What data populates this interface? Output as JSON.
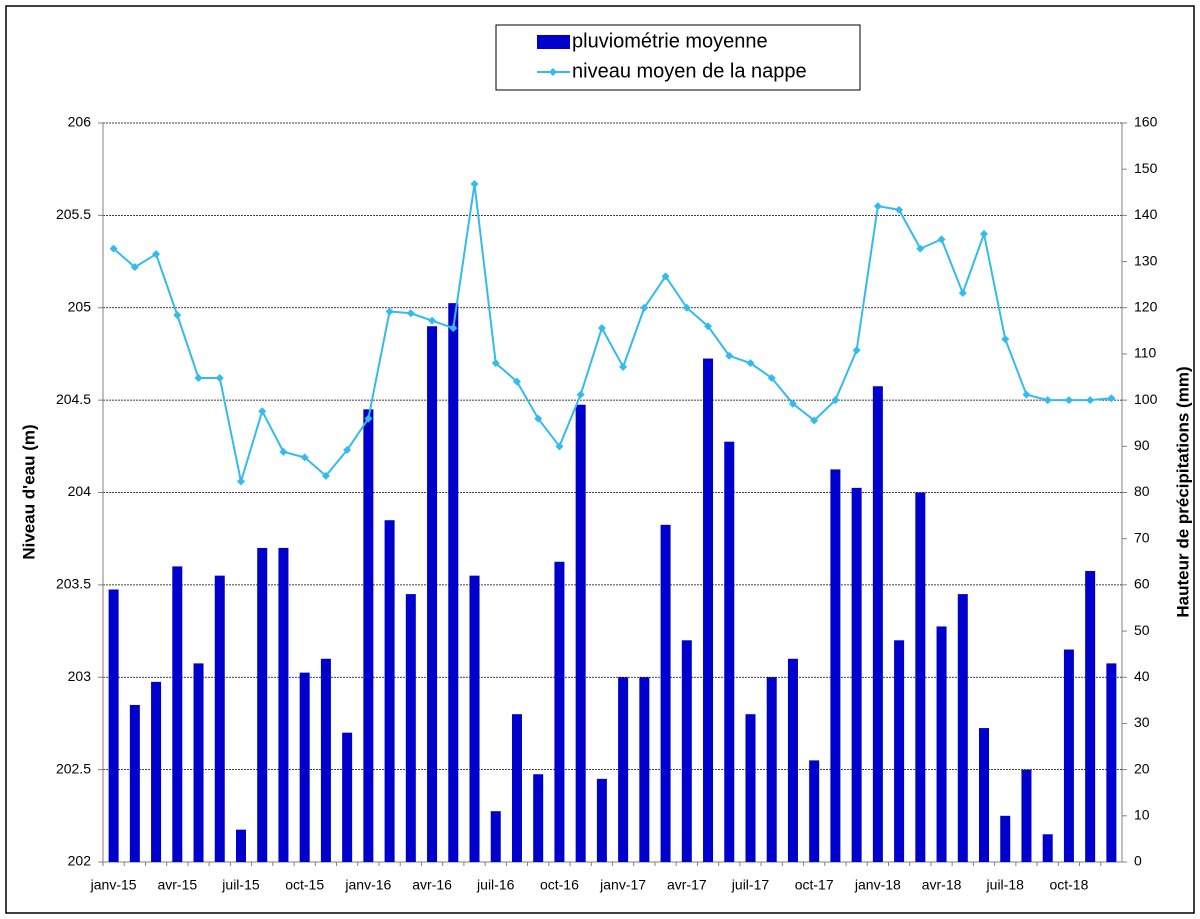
{
  "chart_data": {
    "type": "combo",
    "ylabel": "Niveau d'eau (m)",
    "y2label": "Hauteur de précipitations  (mm)",
    "categories": [
      "janv-15",
      null,
      null,
      "avr-15",
      null,
      null,
      "juil-15",
      null,
      null,
      "oct-15",
      null,
      null,
      "janv-16",
      null,
      null,
      "avr-16",
      null,
      null,
      "juil-16",
      null,
      null,
      "oct-16",
      null,
      null,
      "janv-17",
      null,
      null,
      "avr-17",
      null,
      null,
      "juil-17",
      null,
      null,
      "oct-17",
      null,
      null,
      "janv-18",
      null,
      null,
      "avr-18",
      null,
      null,
      "juil-18",
      null,
      null,
      "oct-18",
      null,
      null
    ],
    "series": [
      {
        "name": "pluviométrie moyenne",
        "type": "bar",
        "axis": "y2",
        "color": "#0000cc",
        "values": [
          59,
          34,
          39,
          64,
          43,
          62,
          7,
          68,
          68,
          41,
          44,
          28,
          98,
          74,
          58,
          116,
          121,
          62,
          11,
          32,
          19,
          65,
          99,
          18,
          40,
          40,
          73,
          48,
          109,
          91,
          32,
          40,
          44,
          22,
          85,
          81,
          103,
          48,
          80,
          51,
          58,
          29,
          10,
          20,
          6,
          46,
          63,
          43
        ]
      },
      {
        "name": "niveau moyen de la nappe",
        "type": "line",
        "color": "#33bbee",
        "marker": "diamond",
        "values": [
          205.32,
          205.22,
          205.29,
          204.96,
          204.62,
          204.62,
          204.06,
          204.44,
          204.22,
          204.19,
          204.09,
          204.23,
          204.4,
          204.98,
          204.97,
          204.93,
          204.89,
          205.67,
          204.7,
          204.6,
          204.4,
          204.25,
          204.53,
          204.89,
          204.68,
          205.0,
          205.17,
          205.0,
          204.9,
          204.74,
          204.7,
          204.62,
          204.48,
          204.39,
          204.5,
          204.77,
          205.55,
          205.53,
          205.32,
          205.37,
          205.08,
          205.4,
          204.83,
          204.53,
          204.5,
          204.5,
          204.5,
          204.51
        ]
      }
    ],
    "ylim": [
      202,
      206
    ],
    "yticks": [
      202,
      202.5,
      203,
      203.5,
      204,
      204.5,
      205,
      205.5,
      206
    ],
    "y2lim": [
      0,
      160
    ],
    "y2ticks": [
      0,
      10,
      20,
      30,
      40,
      50,
      60,
      70,
      80,
      90,
      100,
      110,
      120,
      130,
      140,
      150,
      160
    ],
    "grid": true,
    "legend": "top"
  }
}
